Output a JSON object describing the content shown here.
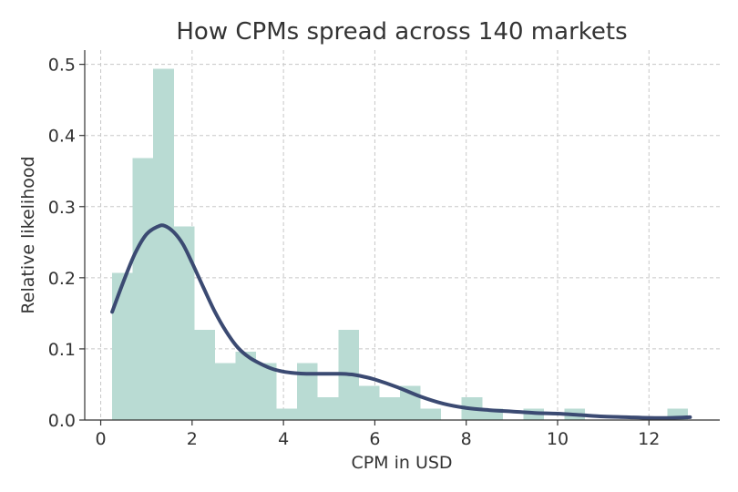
{
  "chart_data": {
    "type": "bar",
    "title": "How CPMs spread across 140 markets",
    "xlabel": "CPM in USD",
    "ylabel": "Relative likelihood",
    "xlim": [
      -0.35,
      13.55
    ],
    "ylim": [
      0,
      0.52
    ],
    "xticks": [
      0,
      2,
      4,
      6,
      8,
      10,
      12
    ],
    "yticks": [
      0.0,
      0.1,
      0.2,
      0.3,
      0.4,
      0.5
    ],
    "grid": true,
    "legend": "none",
    "colors": {
      "bars": "#b9dbd3",
      "curve": "#3b4a72"
    },
    "histogram": {
      "bin_edges": [
        0.25,
        0.7,
        1.15,
        1.6,
        2.05,
        2.5,
        2.95,
        3.4,
        3.85,
        4.3,
        4.75,
        5.2,
        5.65,
        6.1,
        6.55,
        7.0,
        7.45,
        7.9,
        8.35,
        8.8,
        9.25,
        9.7,
        10.15,
        10.6,
        11.05,
        11.5,
        11.95,
        12.4,
        12.85
      ],
      "values": [
        0.207,
        0.368,
        0.494,
        0.272,
        0.127,
        0.08,
        0.096,
        0.08,
        0.016,
        0.08,
        0.032,
        0.127,
        0.048,
        0.032,
        0.048,
        0.016,
        0.0,
        0.032,
        0.016,
        0.0,
        0.016,
        0.0,
        0.016,
        0.0,
        0.0,
        0.0,
        0.0,
        0.016
      ]
    },
    "density": {
      "x": [
        0.25,
        0.5,
        0.75,
        1.0,
        1.25,
        1.4,
        1.6,
        1.8,
        2.0,
        2.25,
        2.5,
        2.75,
        3.0,
        3.25,
        3.5,
        3.75,
        4.0,
        4.25,
        4.5,
        4.75,
        5.0,
        5.25,
        5.5,
        5.75,
        6.0,
        6.5,
        7.0,
        7.5,
        8.0,
        8.5,
        9.0,
        9.5,
        10.0,
        10.5,
        11.0,
        11.5,
        12.0,
        12.5,
        12.9
      ],
      "y": [
        0.152,
        0.195,
        0.234,
        0.261,
        0.272,
        0.273,
        0.264,
        0.247,
        0.221,
        0.186,
        0.152,
        0.124,
        0.102,
        0.088,
        0.079,
        0.072,
        0.068,
        0.066,
        0.065,
        0.065,
        0.065,
        0.065,
        0.064,
        0.061,
        0.057,
        0.046,
        0.033,
        0.023,
        0.017,
        0.014,
        0.012,
        0.01,
        0.009,
        0.007,
        0.005,
        0.004,
        0.003,
        0.003,
        0.004
      ]
    }
  }
}
